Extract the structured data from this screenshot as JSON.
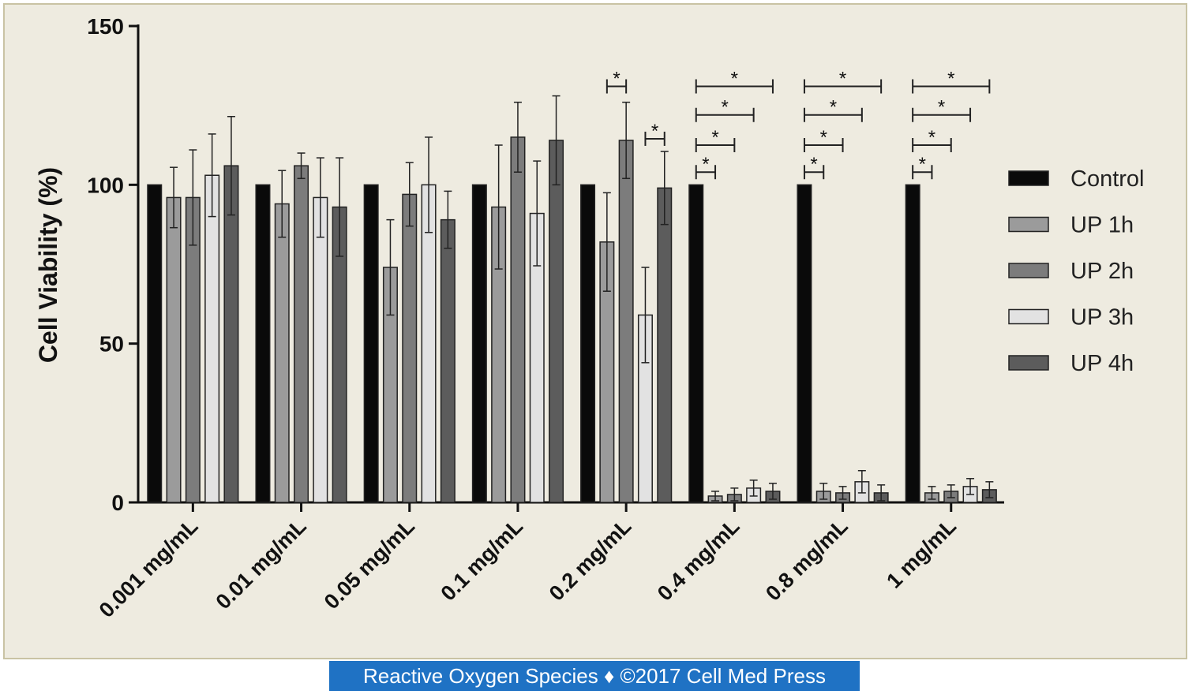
{
  "chart_data": {
    "type": "bar",
    "ylabel": "Cell Viability (%)",
    "xlabel": "",
    "ylim": [
      0,
      150
    ],
    "yticks": [
      0,
      50,
      100,
      150
    ],
    "categories": [
      "0.001 mg/mL",
      "0.01 mg/mL",
      "0.05 mg/mL",
      "0.1 mg/mL",
      "0.2 mg/mL",
      "0.4 mg/mL",
      "0.8 mg/mL",
      "1 mg/mL"
    ],
    "legend_position": "right",
    "series": [
      {
        "name": "Control",
        "color": "#0a0a0a",
        "values": [
          100,
          100,
          100,
          100,
          100,
          100,
          100,
          100
        ],
        "errors": [
          0,
          0,
          0,
          0,
          0,
          0,
          0,
          0
        ]
      },
      {
        "name": "UP 1h",
        "color": "#9b9b9b",
        "values": [
          96,
          94,
          74,
          93,
          82,
          2,
          3.5,
          3
        ],
        "errors": [
          9.5,
          10.5,
          15,
          19.5,
          15.5,
          1.5,
          2.5,
          2
        ]
      },
      {
        "name": "UP 2h",
        "color": "#7c7c7c",
        "values": [
          96,
          106,
          97,
          115,
          114,
          2.5,
          3,
          3.5
        ],
        "errors": [
          15,
          4,
          10,
          11,
          12,
          2,
          2,
          2
        ]
      },
      {
        "name": "UP 3h",
        "color": "#e2e2e2",
        "values": [
          103,
          96,
          100,
          91,
          59,
          4.5,
          6.5,
          5
        ],
        "errors": [
          13,
          12.5,
          15,
          16.5,
          15,
          2.5,
          3.5,
          2.5
        ]
      },
      {
        "name": "UP 4h",
        "color": "#5c5c5c",
        "values": [
          106,
          93,
          89,
          114,
          99,
          3.5,
          3,
          4
        ],
        "errors": [
          15.5,
          15.5,
          9,
          14,
          11.5,
          2.5,
          2.5,
          2.5
        ]
      }
    ],
    "significance": [
      {
        "category": 4,
        "from_series": 1,
        "to_series": 2,
        "y": 131,
        "label": "*"
      },
      {
        "category": 4,
        "from_series": 3,
        "to_series": 4,
        "y": 114.5,
        "label": "*"
      },
      {
        "category": 5,
        "from_series": 0,
        "to_series": 1,
        "y": 104,
        "label": "*"
      },
      {
        "category": 5,
        "from_series": 0,
        "to_series": 2,
        "y": 112.5,
        "label": "*"
      },
      {
        "category": 5,
        "from_series": 0,
        "to_series": 3,
        "y": 122,
        "label": "*"
      },
      {
        "category": 5,
        "from_series": 0,
        "to_series": 4,
        "y": 131,
        "label": "*"
      },
      {
        "category": 6,
        "from_series": 0,
        "to_series": 1,
        "y": 104,
        "label": "*"
      },
      {
        "category": 6,
        "from_series": 0,
        "to_series": 2,
        "y": 112.5,
        "label": "*"
      },
      {
        "category": 6,
        "from_series": 0,
        "to_series": 3,
        "y": 122,
        "label": "*"
      },
      {
        "category": 6,
        "from_series": 0,
        "to_series": 4,
        "y": 131,
        "label": "*"
      },
      {
        "category": 7,
        "from_series": 0,
        "to_series": 1,
        "y": 104,
        "label": "*"
      },
      {
        "category": 7,
        "from_series": 0,
        "to_series": 2,
        "y": 112.5,
        "label": "*"
      },
      {
        "category": 7,
        "from_series": 0,
        "to_series": 3,
        "y": 122,
        "label": "*"
      },
      {
        "category": 7,
        "from_series": 0,
        "to_series": 4,
        "y": 131,
        "label": "*"
      }
    ]
  },
  "caption": "Reactive Oxygen Species ♦ ©2017 Cell Med Press"
}
